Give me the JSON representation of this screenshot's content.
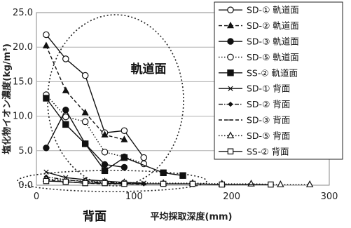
{
  "chart_data": {
    "type": "scatter",
    "xlabel": "平均採取深度(mm)",
    "ylabel": "塩化物イオン濃度(kg/m³)",
    "xlim": [
      0,
      300
    ],
    "ylim": [
      0,
      25
    ],
    "x_ticks": [
      "0",
      "100",
      "200",
      "300"
    ],
    "y_ticks": [
      "0.0",
      "5.0",
      "10.0",
      "15.0",
      "20.0",
      "25.0"
    ],
    "grid": "horizontal",
    "legend_position": "right",
    "annotations": [
      {
        "text": "軌道面",
        "group": "track"
      },
      {
        "text": "背面",
        "group": "back"
      }
    ],
    "series": [
      {
        "name": "SD-① 軌道面",
        "marker": "circle-open",
        "line": "solid",
        "x": [
          10,
          30,
          50,
          70,
          90,
          110
        ],
        "y": [
          21.8,
          18.3,
          15.9,
          7.6,
          7.9,
          4.0
        ]
      },
      {
        "name": "SD-② 軌道面",
        "marker": "triangle-filled",
        "line": "dashed",
        "x": [
          10,
          30,
          50,
          70,
          90
        ],
        "y": [
          20.2,
          13.7,
          10.5,
          7.3,
          6.6
        ]
      },
      {
        "name": "SD-③ 軌道面",
        "marker": "circle-filled",
        "line": "solid",
        "x": [
          10,
          30,
          50,
          70,
          90
        ],
        "y": [
          5.4,
          10.9,
          6.0,
          3.0,
          2.6
        ]
      },
      {
        "name": "SD-⑤ 軌道面",
        "marker": "circle-open",
        "line": "dotted",
        "x": [
          10,
          30,
          50,
          70,
          90,
          110
        ],
        "y": [
          13.1,
          9.9,
          9.2,
          4.8,
          4.1,
          3.1
        ]
      },
      {
        "name": "SS-② 軌道面",
        "marker": "square-filled",
        "line": "solid",
        "x": [
          10,
          30,
          50,
          70,
          90,
          130,
          150
        ],
        "y": [
          12.6,
          8.8,
          6.0,
          2.1,
          4.0,
          1.8,
          1.4
        ]
      },
      {
        "name": "SD-① 背面",
        "marker": "x",
        "line": "solid",
        "x": [
          10,
          30,
          50,
          70,
          90,
          110
        ],
        "y": [
          1.9,
          1.1,
          0.8,
          0.6,
          0.4,
          0.3
        ]
      },
      {
        "name": "SD-② 背面",
        "marker": "diamond-filled",
        "line": "dashdot",
        "x": [
          10,
          30,
          50,
          70,
          90,
          110
        ],
        "y": [
          1.2,
          0.8,
          0.5,
          0.4,
          0.3,
          0.2
        ]
      },
      {
        "name": "SD-③ 背面",
        "marker": "dash",
        "line": "dashed",
        "x": [
          10,
          30,
          50,
          70,
          90,
          110
        ],
        "y": [
          0.8,
          0.5,
          0.3,
          0.2,
          0.2,
          0.1
        ]
      },
      {
        "name": "SD-⑤ 背面",
        "marker": "triangle-open",
        "line": "dotted",
        "x": [
          10,
          30,
          50,
          70,
          90,
          130,
          160,
          190,
          220,
          250,
          280
        ],
        "y": [
          0.9,
          0.7,
          0.6,
          0.5,
          0.4,
          0.3,
          0.3,
          0.2,
          0.2,
          0.1,
          0.1
        ]
      },
      {
        "name": "SS-② 背面",
        "marker": "square-open",
        "line": "solid",
        "x": [
          10,
          30,
          50,
          70,
          90,
          130,
          160,
          190,
          240
        ],
        "y": [
          0.6,
          0.5,
          0.3,
          0.3,
          0.2,
          0.2,
          0.2,
          0.1,
          0.1
        ]
      }
    ]
  }
}
